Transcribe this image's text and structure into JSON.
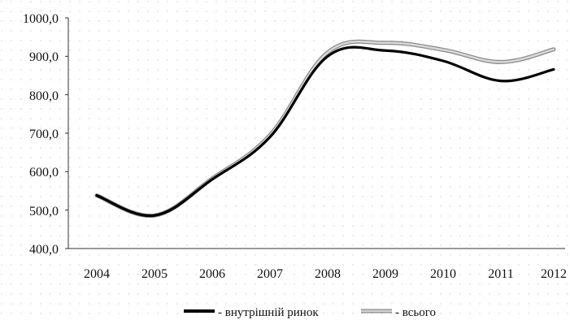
{
  "chart_data": {
    "type": "line",
    "x": [
      "2004",
      "2005",
      "2006",
      "2007",
      "2008",
      "2009",
      "2010",
      "2011",
      "2012"
    ],
    "ylim": [
      400,
      1000
    ],
    "yticks": [
      "400,0",
      "500,0",
      "600,0",
      "700,0",
      "800,0",
      "900,0",
      "1000,0"
    ],
    "grid": "dotted",
    "legend_position": "bottom",
    "series": [
      {
        "name": "- внутрішній ринок",
        "color": "#000000",
        "values": [
          538,
          486,
          580,
          690,
          900,
          915,
          888,
          836,
          866
        ]
      },
      {
        "name": "- всього",
        "color": "#b0b0b0",
        "values": [
          538,
          486,
          582,
          695,
          910,
          935,
          917,
          885,
          918
        ]
      }
    ]
  }
}
